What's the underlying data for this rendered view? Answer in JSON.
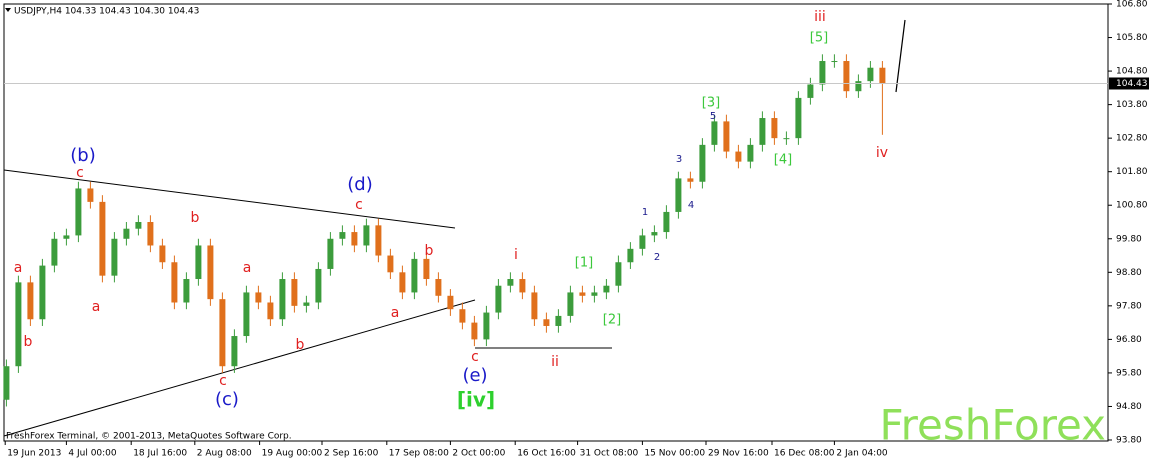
{
  "chart_data": {
    "type": "candlestick",
    "header": "USDJPY,H4  104.33 104.43 104.30 104.43",
    "footer": "FreshForex Terminal, © 2001-2013, MetaQuotes Software Corp.",
    "brand": "FreshForex",
    "up_color": "#3c9c3c",
    "down_color": "#e0701c",
    "last_price": 104.43,
    "xlim": [
      -0.2,
      91.8
    ],
    "xticks": [
      {
        "value": -0.1,
        "label": "19 Jun 2013"
      },
      {
        "value": 5,
        "label": "4 Jul 00:00"
      },
      {
        "value": 10.4,
        "label": "18 Jul 16:00"
      },
      {
        "value": 15.7,
        "label": "2 Aug 08:00"
      },
      {
        "value": 21.1,
        "label": "19 Aug 00:00"
      },
      {
        "value": 26.3,
        "label": "2 Sep 16:00"
      },
      {
        "value": 31.7,
        "label": "17 Sep 08:00"
      },
      {
        "value": 37,
        "label": "2 Oct 00:00"
      },
      {
        "value": 42.4,
        "label": "16 Oct 16:00"
      },
      {
        "value": 47.6,
        "label": "31 Oct 08:00"
      },
      {
        "value": 53,
        "label": "15 Nov 00:00"
      },
      {
        "value": 58.3,
        "label": "29 Nov 16:00"
      },
      {
        "value": 63.8,
        "label": "16 Dec 08:00"
      },
      {
        "value": 69,
        "label": "2 Jan 04:00"
      }
    ],
    "ylim": [
      93.8,
      106.8
    ],
    "yticks": [
      {
        "value": 93.8,
        "label": "93.80"
      },
      {
        "value": 94.8,
        "label": "94.80"
      },
      {
        "value": 95.8,
        "label": "95.80"
      },
      {
        "value": 96.8,
        "label": "96.80"
      },
      {
        "value": 97.8,
        "label": "97.80"
      },
      {
        "value": 98.8,
        "label": "98.80"
      },
      {
        "value": 99.8,
        "label": "99.80"
      },
      {
        "value": 100.8,
        "label": "100.80"
      },
      {
        "value": 101.8,
        "label": "101.80"
      },
      {
        "value": 102.8,
        "label": "102.80"
      },
      {
        "value": 103.8,
        "label": "103.80"
      },
      {
        "value": 104.8,
        "label": "104.80"
      },
      {
        "value": 105.8,
        "label": "105.80"
      },
      {
        "value": 106.8,
        "label": "106.80"
      }
    ],
    "open": [
      95.0,
      96.0,
      98.5,
      97.4,
      99.0,
      99.8,
      99.9,
      101.3,
      100.9,
      98.7,
      99.8,
      100.1,
      100.3,
      99.6,
      99.1,
      97.9,
      98.6,
      99.6,
      98.0,
      96.0,
      96.9,
      98.2,
      97.9,
      97.4,
      98.6,
      97.8,
      97.9,
      98.9,
      99.8,
      100.0,
      99.6,
      100.2,
      99.3,
      98.8,
      98.2,
      99.2,
      98.6,
      98.1,
      97.7,
      97.3,
      96.8,
      97.6,
      98.4,
      98.6,
      98.2,
      97.4,
      97.2,
      97.5,
      98.2,
      98.1,
      98.2,
      98.4,
      99.1,
      99.5,
      99.9,
      100.0,
      100.6,
      101.6,
      101.5,
      102.6,
      103.3,
      102.4,
      102.1,
      102.6,
      103.4,
      102.8,
      102.8,
      104.0,
      104.4,
      105.1,
      105.1,
      104.2,
      104.5,
      104.9
    ],
    "high": [
      96.2,
      98.7,
      98.7,
      99.2,
      100.0,
      100.1,
      101.5,
      101.5,
      101.1,
      100.0,
      100.3,
      100.5,
      100.5,
      99.8,
      99.3,
      98.8,
      99.8,
      99.8,
      98.2,
      97.1,
      98.4,
      98.4,
      98.1,
      98.8,
      98.8,
      98.1,
      99.1,
      100.0,
      100.2,
      100.2,
      100.4,
      100.4,
      99.5,
      99.0,
      99.4,
      99.4,
      98.8,
      98.3,
      97.9,
      97.5,
      97.8,
      98.6,
      98.8,
      98.8,
      98.4,
      97.6,
      97.7,
      98.4,
      98.4,
      98.4,
      98.6,
      99.3,
      99.7,
      100.1,
      100.2,
      100.8,
      101.8,
      101.8,
      102.8,
      103.5,
      103.5,
      102.6,
      102.8,
      103.6,
      103.6,
      103.0,
      104.2,
      104.6,
      105.3,
      105.3,
      105.3,
      104.7,
      105.1,
      105.1
    ],
    "low": [
      94.8,
      95.8,
      97.2,
      97.2,
      98.8,
      99.6,
      99.7,
      100.7,
      98.5,
      98.5,
      99.6,
      99.9,
      99.4,
      98.9,
      97.7,
      97.7,
      98.4,
      97.8,
      95.8,
      95.8,
      96.7,
      97.7,
      97.2,
      97.2,
      97.6,
      97.6,
      97.7,
      98.7,
      99.6,
      99.4,
      99.4,
      99.1,
      98.6,
      98.0,
      98.0,
      98.4,
      97.9,
      97.5,
      97.1,
      96.6,
      96.6,
      97.4,
      98.2,
      98.0,
      97.2,
      97.0,
      97.0,
      97.3,
      97.9,
      97.9,
      98.0,
      98.2,
      98.9,
      99.3,
      99.7,
      99.8,
      100.4,
      101.3,
      101.3,
      102.4,
      102.2,
      101.9,
      101.9,
      102.4,
      102.6,
      102.6,
      102.6,
      103.8,
      104.2,
      104.9,
      104.0,
      104.0,
      104.3,
      102.9
    ],
    "close": [
      96.0,
      98.5,
      97.4,
      99.0,
      99.8,
      99.9,
      101.3,
      100.9,
      98.7,
      99.8,
      100.1,
      100.3,
      99.6,
      99.1,
      97.9,
      98.6,
      99.6,
      98.0,
      96.0,
      96.9,
      98.2,
      97.9,
      97.4,
      98.6,
      97.8,
      97.9,
      98.9,
      99.8,
      100.0,
      99.6,
      100.2,
      99.3,
      98.8,
      98.2,
      99.2,
      98.6,
      98.1,
      97.7,
      97.3,
      96.8,
      97.6,
      98.4,
      98.6,
      98.2,
      97.4,
      97.2,
      97.5,
      98.2,
      98.1,
      98.2,
      98.4,
      99.1,
      99.5,
      99.9,
      100.0,
      100.6,
      101.6,
      101.5,
      102.6,
      103.3,
      102.4,
      102.1,
      102.6,
      103.4,
      102.8,
      102.8,
      104.0,
      104.4,
      105.1,
      105.1,
      104.2,
      104.5,
      104.9,
      104.43
    ],
    "annotations": [
      "(b)",
      "c",
      "a",
      "b",
      "a",
      "b",
      "a",
      "c",
      "(c)",
      "b",
      "(d)",
      "c",
      "b",
      "a",
      "c",
      "(e)",
      "[iv]",
      "i",
      "ii",
      "[1]",
      "[2]",
      "1",
      "2",
      "3",
      "4",
      "5",
      "[3]",
      "[4]",
      "[5]",
      "iii",
      "iv"
    ]
  }
}
